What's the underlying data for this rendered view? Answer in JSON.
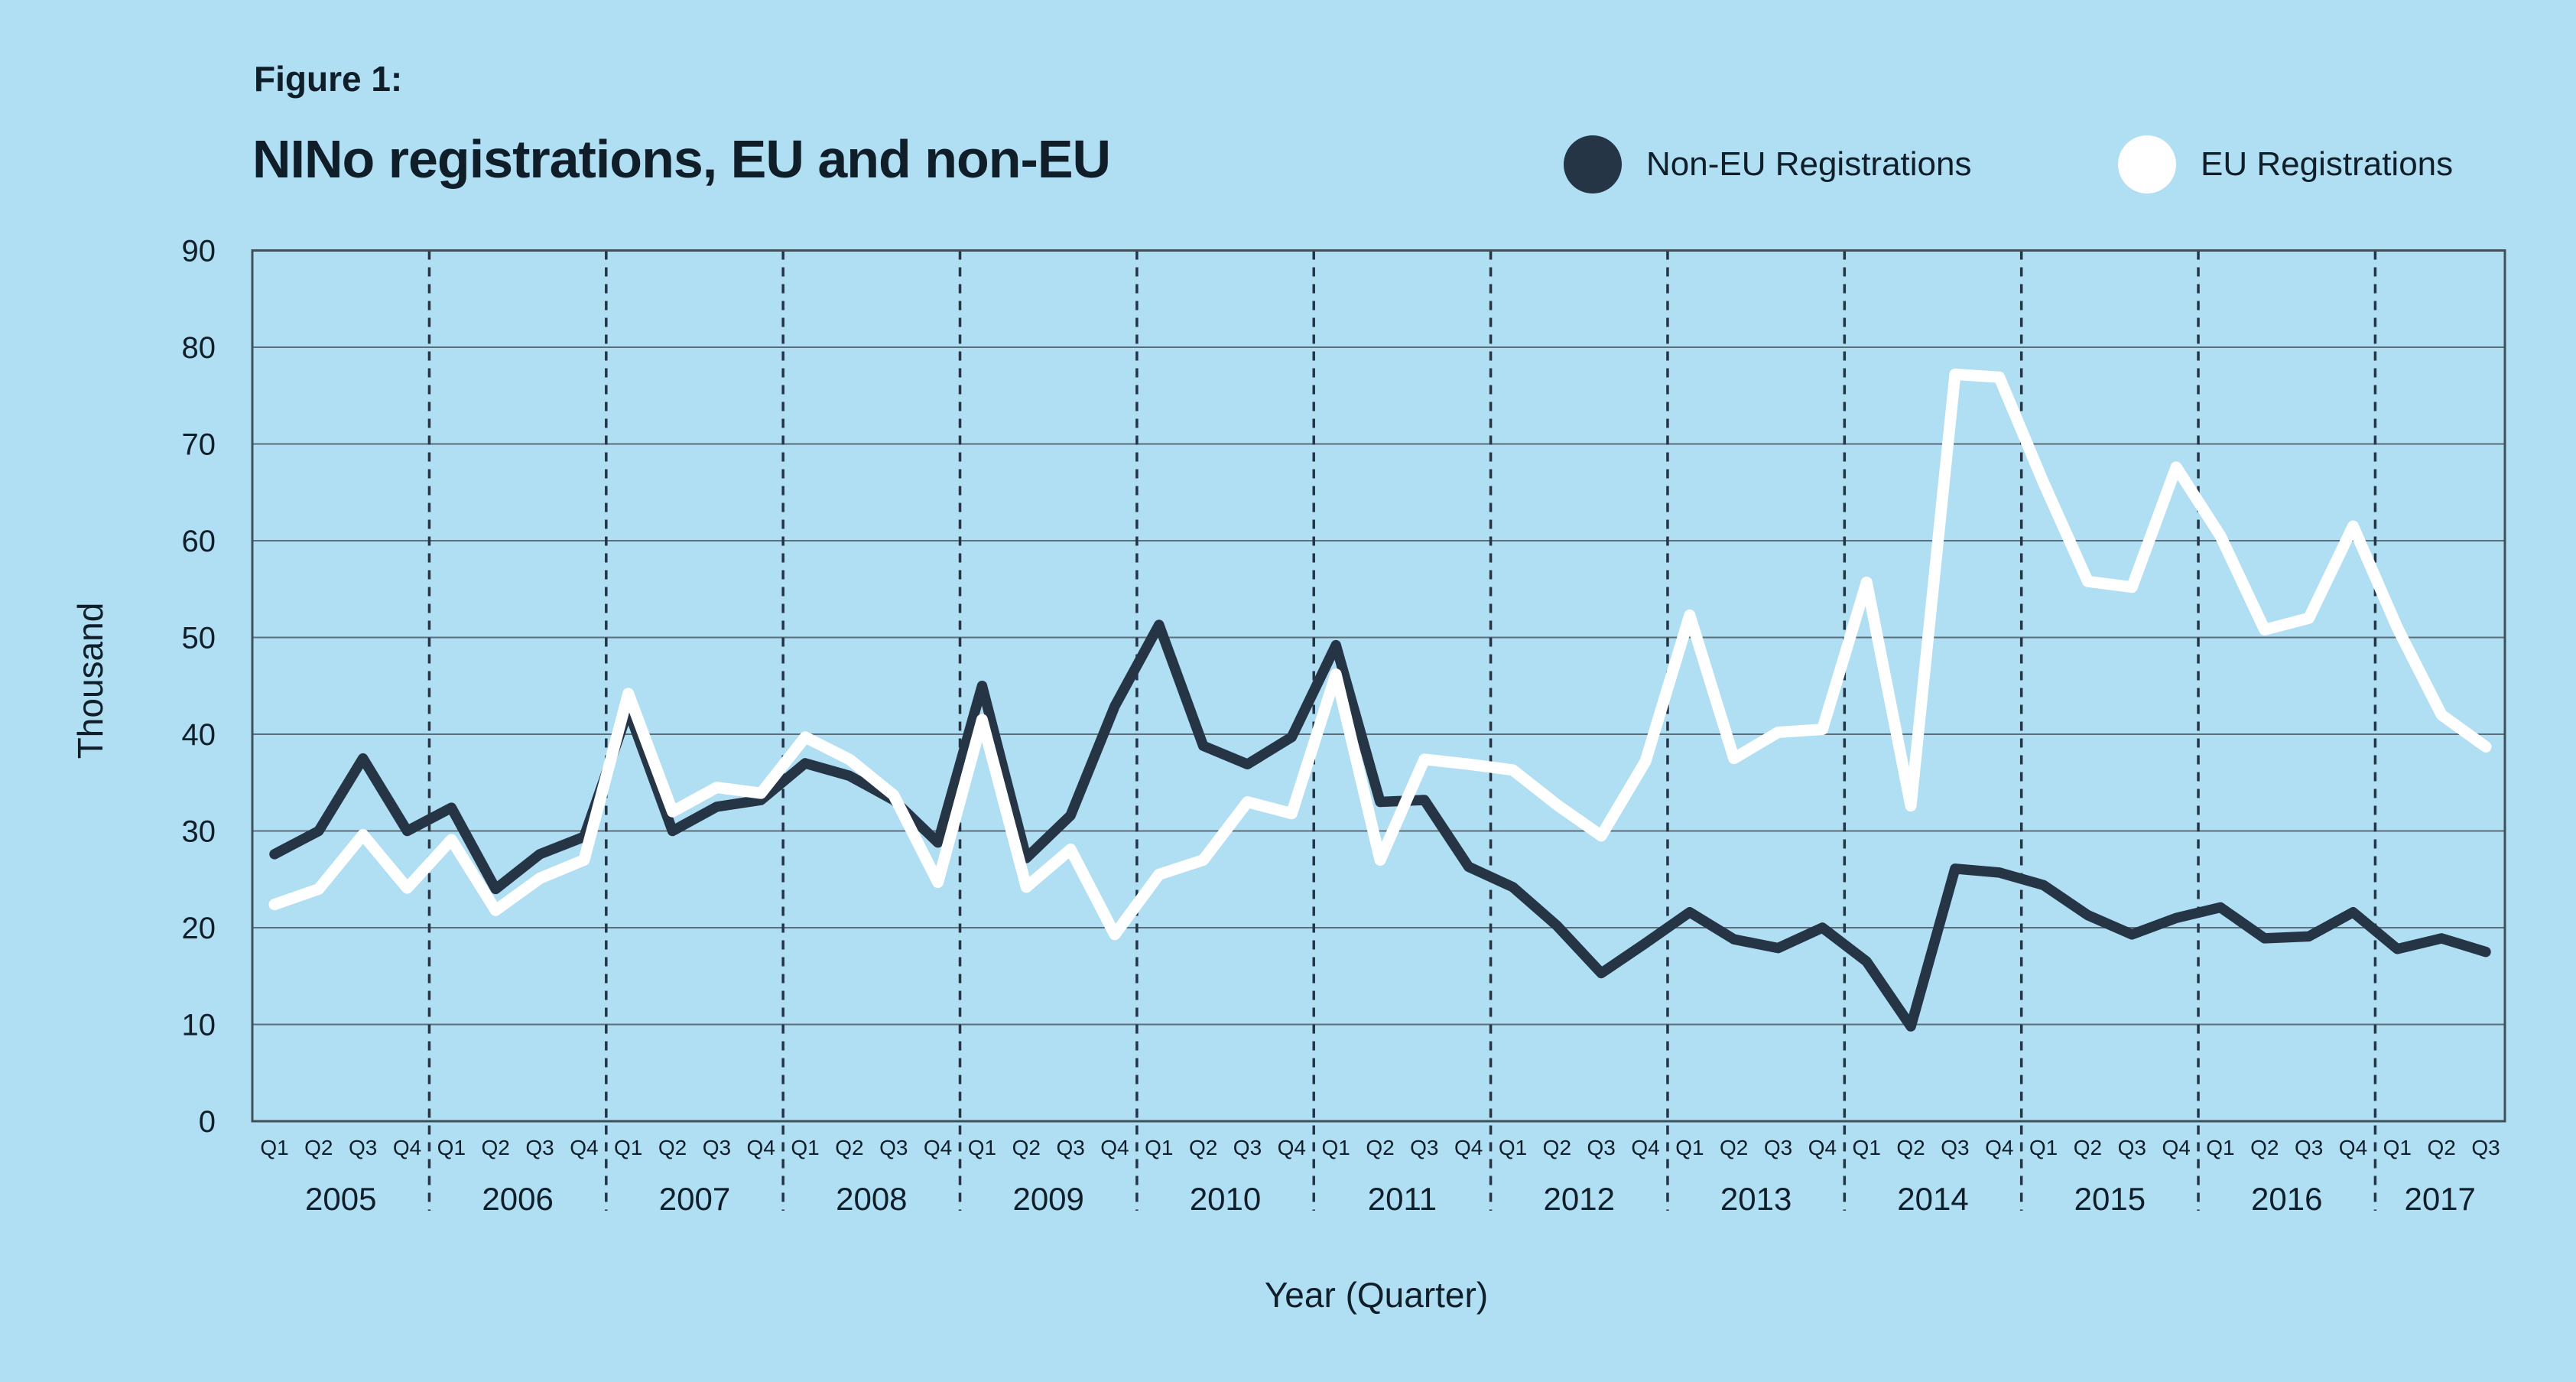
{
  "figure": {
    "kicker": "Figure 1:",
    "title": "NINo registrations, EU and non-EU"
  },
  "legend": [
    {
      "label": "Non-EU Registrations",
      "color": "#263545"
    },
    {
      "label": "EU Registrations",
      "color": "#ffffff"
    }
  ],
  "axes": {
    "y_title": "Thousand",
    "x_title": "Year (Quarter)"
  },
  "colors": {
    "background": "#b0def3",
    "gridline": "#5c6e7a",
    "frame": "#3f505b",
    "separator": "#263545",
    "text": "#101e2a"
  },
  "chart_data": {
    "type": "line",
    "title": "NINo registrations, EU and non-EU",
    "xlabel": "Year (Quarter)",
    "ylabel": "Thousand",
    "ylim": [
      0,
      90
    ],
    "y_ticks": [
      0,
      10,
      20,
      30,
      40,
      50,
      60,
      70,
      80,
      90
    ],
    "grid": "horizontal-solid, year-separators-dashed",
    "legend_position": "top-right",
    "quarter_labels": [
      "Q1",
      "Q2",
      "Q3",
      "Q4"
    ],
    "x_years": [
      {
        "label": "2005",
        "quarters": 4
      },
      {
        "label": "2006",
        "quarters": 4
      },
      {
        "label": "2007",
        "quarters": 4
      },
      {
        "label": "2008",
        "quarters": 4
      },
      {
        "label": "2009",
        "quarters": 4
      },
      {
        "label": "2010",
        "quarters": 4
      },
      {
        "label": "2011",
        "quarters": 4
      },
      {
        "label": "2012",
        "quarters": 4
      },
      {
        "label": "2013",
        "quarters": 4
      },
      {
        "label": "2014",
        "quarters": 4
      },
      {
        "label": "2015",
        "quarters": 4
      },
      {
        "label": "2016",
        "quarters": 4
      },
      {
        "label": "2017",
        "quarters": 3
      }
    ],
    "series": [
      {
        "name": "Non-EU Registrations",
        "color": "#263545",
        "values": [
          27.6,
          30,
          37.5,
          30,
          32.4,
          24,
          27.6,
          29.4,
          42.5,
          30,
          32.5,
          33.2,
          37,
          35.7,
          33.2,
          28.8,
          45,
          27.2,
          31.6,
          42.9,
          51.3,
          38.8,
          36.9,
          39.7,
          49.2,
          33,
          33.2,
          26.3,
          24.2,
          20.2,
          15.3,
          18.4,
          21.6,
          18.8,
          17.9,
          20,
          16.5,
          9.8,
          26.1,
          25.7,
          24.4,
          21.3,
          19.3,
          21,
          22.1,
          18.9,
          19.1,
          21.6,
          17.8,
          18.9,
          17.5
        ]
      },
      {
        "name": "EU Registrations",
        "color": "#ffffff",
        "values": [
          22.4,
          24,
          29.6,
          24.1,
          29.1,
          21.8,
          25.1,
          27,
          44.2,
          32,
          34.5,
          33.9,
          39.7,
          37.4,
          33.7,
          24.7,
          41.5,
          24.2,
          28.1,
          19.3,
          25.5,
          27,
          33,
          31.8,
          46.2,
          27,
          37.4,
          36.9,
          36.3,
          32.7,
          29.5,
          37.2,
          52.3,
          37.5,
          40.2,
          40.5,
          55.7,
          32.6,
          77.2,
          76.9,
          66,
          55.8,
          55.2,
          67.6,
          60.5,
          50.8,
          52,
          61.5,
          51,
          42,
          38.7
        ]
      }
    ]
  }
}
